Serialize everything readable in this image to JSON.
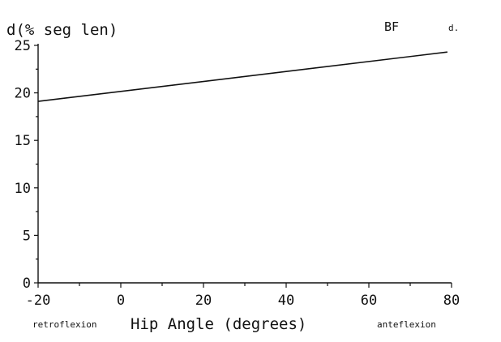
{
  "chart_data": {
    "type": "line",
    "ylabel": "d(% seg len)",
    "series_label": "BF",
    "corner_mark": "d.",
    "xlabel": "Hip Angle  (degrees)",
    "xlabel_left": "retroflexion",
    "xlabel_right": "anteflexion",
    "xlim": [
      -20,
      80
    ],
    "ylim": [
      0,
      25
    ],
    "x_ticks": [
      -20,
      0,
      20,
      40,
      60,
      80
    ],
    "y_ticks": [
      0,
      5,
      10,
      15,
      20,
      25
    ],
    "x_minor_ticks": [
      -10,
      10,
      30,
      50,
      70
    ],
    "y_minor_ticks": [
      2.5,
      7.5,
      12.5,
      17.5,
      22.5
    ],
    "grid": false,
    "series": [
      {
        "x": [
          -20,
          79
        ],
        "y": [
          19.1,
          24.3
        ]
      }
    ]
  }
}
